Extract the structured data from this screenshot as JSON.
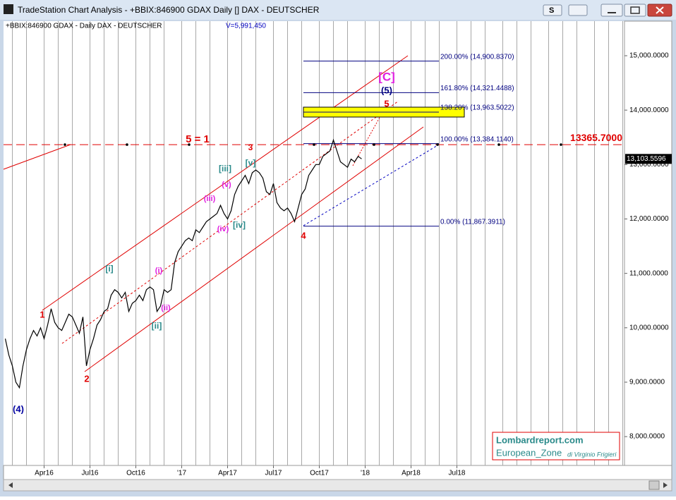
{
  "window": {
    "title": "TradeStation Chart Analysis - +BBIX:846900 GDAX Daily [] DAX - DEUTSCHER",
    "button_label": "S"
  },
  "chart_data": {
    "type": "line",
    "symbol_info": "+BBIX:846900 GDAX - Daily  DAX - DEUTSCHER",
    "volume_info": "V=5,991,450",
    "color": "#000000",
    "categories": [
      null,
      null,
      null,
      null,
      null,
      null,
      null,
      null,
      null,
      null,
      null,
      "Apr16",
      null,
      null,
      null,
      null,
      null,
      null,
      null,
      null,
      null,
      null,
      null,
      null,
      "Jul16",
      null,
      null,
      null,
      null,
      null,
      null,
      null,
      null,
      null,
      null,
      null,
      null,
      "Oct16",
      null,
      null,
      null,
      null,
      null,
      null,
      null,
      null,
      null,
      null,
      null,
      null,
      "'17",
      null,
      null,
      null,
      null,
      null,
      null,
      null,
      null,
      null,
      null,
      null,
      null,
      "Apr17",
      null,
      null,
      null,
      null,
      null,
      null,
      null,
      null,
      null,
      null,
      null,
      null,
      "Jul17",
      null,
      null,
      null,
      null,
      null,
      null,
      null,
      null,
      null,
      null,
      null,
      null,
      "Oct17",
      null,
      null,
      null,
      null,
      null,
      null,
      null,
      null,
      null,
      null,
      null,
      null,
      "'18",
      null,
      null,
      null,
      null,
      null,
      null,
      null,
      null,
      null,
      null,
      null,
      null,
      "Apr18",
      null,
      null,
      null,
      null,
      null,
      null,
      null,
      null,
      null,
      null,
      null,
      null,
      "Jul18",
      null,
      null,
      null,
      null,
      null,
      null,
      null,
      null,
      null,
      null,
      null,
      null,
      null,
      null,
      null,
      null,
      null,
      null,
      null,
      null,
      null,
      null,
      null,
      null,
      null,
      null,
      null,
      null,
      null,
      null,
      null,
      null,
      null,
      null,
      null,
      null,
      null,
      null,
      null,
      null,
      null,
      null,
      null,
      null,
      null,
      null,
      null
    ],
    "values": [
      9800,
      9500,
      9300,
      9000,
      8900,
      9300,
      9600,
      9800,
      9950,
      9850,
      10000,
      9800,
      10050,
      10350,
      10100,
      10000,
      9950,
      10100,
      10250,
      10200,
      10050,
      9900,
      10200,
      9300,
      9600,
      9800,
      10050,
      10150,
      10300,
      10350,
      10600,
      10700,
      10650,
      10550,
      10650,
      10300,
      10450,
      10500,
      10600,
      10500,
      10700,
      10750,
      10700,
      10300,
      10400,
      10700,
      10650,
      10700,
      11200,
      11400,
      11500,
      11600,
      11650,
      11600,
      11800,
      11750,
      11850,
      11950,
      12000,
      12050,
      12100,
      12250,
      12100,
      12000,
      12150,
      12450,
      12600,
      12700,
      12800,
      12650,
      12850,
      12900,
      12850,
      12750,
      12500,
      12450,
      12650,
      12300,
      12200,
      12150,
      12200,
      12100,
      11950,
      12200,
      12450,
      12550,
      12800,
      12900,
      13000,
      13000,
      13150,
      13200,
      13250,
      13450,
      13250,
      13050,
      13000,
      12950,
      13100,
      13050,
      13150,
      13103.5596,
      null,
      null,
      null,
      null,
      null,
      null,
      null,
      null,
      null,
      null,
      null,
      null,
      null,
      null,
      null,
      null,
      null,
      null,
      null,
      null,
      null,
      null,
      null,
      null,
      null,
      null,
      null,
      null,
      null,
      null,
      null,
      null,
      null,
      null,
      null,
      null,
      null,
      null,
      null,
      null,
      null,
      null,
      null,
      null,
      null,
      null,
      null,
      null,
      null,
      null,
      null,
      null,
      null,
      null,
      null,
      null,
      null,
      null,
      null,
      null,
      null,
      null,
      null,
      null,
      null,
      null,
      null,
      null,
      null,
      null,
      null,
      null,
      null,
      null
    ],
    "ylim": [
      7470,
      15635
    ],
    "yticks": [
      {
        "value": 8000,
        "label": "8,000.0000"
      },
      {
        "value": 9000,
        "label": "9,000.0000"
      },
      {
        "value": 10000,
        "label": "10,000.0000"
      },
      {
        "value": 11000,
        "label": "11,000.0000"
      },
      {
        "value": 12000,
        "label": "12,000.0000"
      },
      {
        "value": 13000,
        "label": "13,000.0000"
      },
      {
        "value": 14000,
        "label": "14,000.0000"
      },
      {
        "value": 15000,
        "label": "15,000.0000"
      }
    ],
    "last_price": {
      "value": 13103.5596,
      "label": "13,103.5596"
    },
    "reference_line": {
      "value": 13365.7,
      "label": "13365.7000",
      "color": "#e00000"
    },
    "fib_levels": [
      {
        "value": 14900.837,
        "label": "200.00% (14,900.8370)"
      },
      {
        "value": 14321.4488,
        "label": "161.80% (14,321.4488)"
      },
      {
        "value": 13963.5022,
        "label": "138.20% (13,963.5022)",
        "fill": "#ffff00"
      },
      {
        "value": 13384.114,
        "label": "100.00% (13,384.1140)"
      },
      {
        "value": 11867.3911,
        "label": "0.00% (11,867.3911)"
      }
    ],
    "annotations": [
      {
        "text": "(4)",
        "color": "#0000a0"
      },
      {
        "text": "1",
        "color": "#e00000"
      },
      {
        "text": "2",
        "color": "#e00000"
      },
      {
        "text": "[i]",
        "color": "#2a8a8a"
      },
      {
        "text": "(i)",
        "color": "#e020e0"
      },
      {
        "text": "(ii)",
        "color": "#e020e0"
      },
      {
        "text": "[ii]",
        "color": "#2a8a8a"
      },
      {
        "text": "(iii)",
        "color": "#e020e0"
      },
      {
        "text": "[iii]",
        "color": "#2a8a8a"
      },
      {
        "text": "(iv)",
        "color": "#e020e0"
      },
      {
        "text": "[iv]",
        "color": "#2a8a8a"
      },
      {
        "text": "(v)",
        "color": "#e020e0"
      },
      {
        "text": "[v]",
        "color": "#2a8a8a"
      },
      {
        "text": "3",
        "color": "#e00000"
      },
      {
        "text": "4",
        "color": "#e00000"
      },
      {
        "text": "5",
        "color": "#e00000"
      },
      {
        "text": "(5)",
        "color": "#000080"
      },
      {
        "text": "[C]",
        "color": "#e020e0"
      },
      {
        "text": "5 = 1",
        "color": "#e00000"
      }
    ],
    "watermark": {
      "site": "Lombardreport.com",
      "zone": "European_Zone",
      "author": "di Virginio Frigieri"
    }
  }
}
